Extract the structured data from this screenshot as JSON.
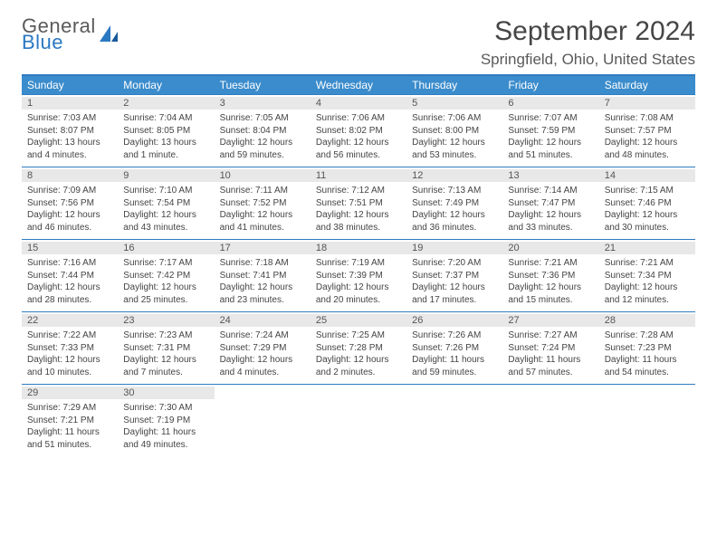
{
  "logo": {
    "line1": "General",
    "line2": "Blue"
  },
  "title": {
    "month": "September 2024",
    "location": "Springfield, Ohio, United States"
  },
  "colors": {
    "accent": "#3b8ccc",
    "rule": "#2f7cc0",
    "dayBar": "#e8e8e8"
  },
  "header": [
    "Sunday",
    "Monday",
    "Tuesday",
    "Wednesday",
    "Thursday",
    "Friday",
    "Saturday"
  ],
  "grid": {
    "cols": 7,
    "rows": 5,
    "leading_empty": 0
  },
  "days": [
    {
      "n": 1,
      "sr": "7:03 AM",
      "ss": "8:07 PM",
      "dl": "13 hours and 4 minutes."
    },
    {
      "n": 2,
      "sr": "7:04 AM",
      "ss": "8:05 PM",
      "dl": "13 hours and 1 minute."
    },
    {
      "n": 3,
      "sr": "7:05 AM",
      "ss": "8:04 PM",
      "dl": "12 hours and 59 minutes."
    },
    {
      "n": 4,
      "sr": "7:06 AM",
      "ss": "8:02 PM",
      "dl": "12 hours and 56 minutes."
    },
    {
      "n": 5,
      "sr": "7:06 AM",
      "ss": "8:00 PM",
      "dl": "12 hours and 53 minutes."
    },
    {
      "n": 6,
      "sr": "7:07 AM",
      "ss": "7:59 PM",
      "dl": "12 hours and 51 minutes."
    },
    {
      "n": 7,
      "sr": "7:08 AM",
      "ss": "7:57 PM",
      "dl": "12 hours and 48 minutes."
    },
    {
      "n": 8,
      "sr": "7:09 AM",
      "ss": "7:56 PM",
      "dl": "12 hours and 46 minutes."
    },
    {
      "n": 9,
      "sr": "7:10 AM",
      "ss": "7:54 PM",
      "dl": "12 hours and 43 minutes."
    },
    {
      "n": 10,
      "sr": "7:11 AM",
      "ss": "7:52 PM",
      "dl": "12 hours and 41 minutes."
    },
    {
      "n": 11,
      "sr": "7:12 AM",
      "ss": "7:51 PM",
      "dl": "12 hours and 38 minutes."
    },
    {
      "n": 12,
      "sr": "7:13 AM",
      "ss": "7:49 PM",
      "dl": "12 hours and 36 minutes."
    },
    {
      "n": 13,
      "sr": "7:14 AM",
      "ss": "7:47 PM",
      "dl": "12 hours and 33 minutes."
    },
    {
      "n": 14,
      "sr": "7:15 AM",
      "ss": "7:46 PM",
      "dl": "12 hours and 30 minutes."
    },
    {
      "n": 15,
      "sr": "7:16 AM",
      "ss": "7:44 PM",
      "dl": "12 hours and 28 minutes."
    },
    {
      "n": 16,
      "sr": "7:17 AM",
      "ss": "7:42 PM",
      "dl": "12 hours and 25 minutes."
    },
    {
      "n": 17,
      "sr": "7:18 AM",
      "ss": "7:41 PM",
      "dl": "12 hours and 23 minutes."
    },
    {
      "n": 18,
      "sr": "7:19 AM",
      "ss": "7:39 PM",
      "dl": "12 hours and 20 minutes."
    },
    {
      "n": 19,
      "sr": "7:20 AM",
      "ss": "7:37 PM",
      "dl": "12 hours and 17 minutes."
    },
    {
      "n": 20,
      "sr": "7:21 AM",
      "ss": "7:36 PM",
      "dl": "12 hours and 15 minutes."
    },
    {
      "n": 21,
      "sr": "7:21 AM",
      "ss": "7:34 PM",
      "dl": "12 hours and 12 minutes."
    },
    {
      "n": 22,
      "sr": "7:22 AM",
      "ss": "7:33 PM",
      "dl": "12 hours and 10 minutes."
    },
    {
      "n": 23,
      "sr": "7:23 AM",
      "ss": "7:31 PM",
      "dl": "12 hours and 7 minutes."
    },
    {
      "n": 24,
      "sr": "7:24 AM",
      "ss": "7:29 PM",
      "dl": "12 hours and 4 minutes."
    },
    {
      "n": 25,
      "sr": "7:25 AM",
      "ss": "7:28 PM",
      "dl": "12 hours and 2 minutes."
    },
    {
      "n": 26,
      "sr": "7:26 AM",
      "ss": "7:26 PM",
      "dl": "11 hours and 59 minutes."
    },
    {
      "n": 27,
      "sr": "7:27 AM",
      "ss": "7:24 PM",
      "dl": "11 hours and 57 minutes."
    },
    {
      "n": 28,
      "sr": "7:28 AM",
      "ss": "7:23 PM",
      "dl": "11 hours and 54 minutes."
    },
    {
      "n": 29,
      "sr": "7:29 AM",
      "ss": "7:21 PM",
      "dl": "11 hours and 51 minutes."
    },
    {
      "n": 30,
      "sr": "7:30 AM",
      "ss": "7:19 PM",
      "dl": "11 hours and 49 minutes."
    }
  ],
  "labels": {
    "sunrise": "Sunrise:",
    "sunset": "Sunset:",
    "daylight": "Daylight:"
  }
}
